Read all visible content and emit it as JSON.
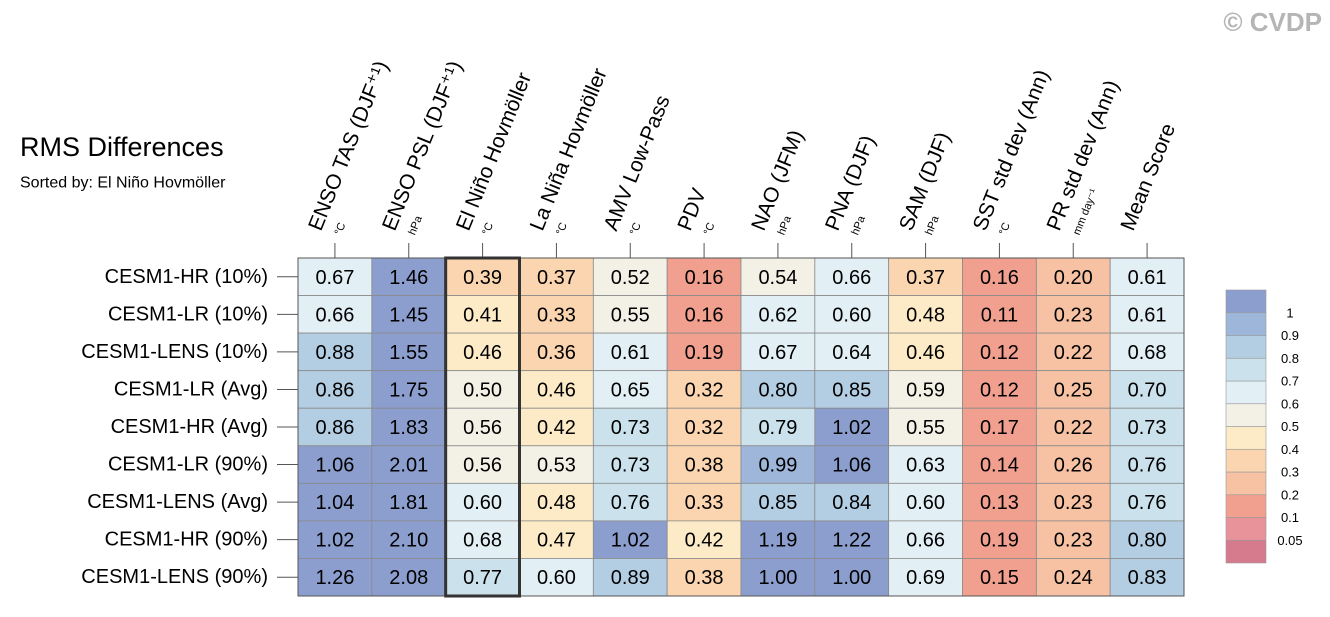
{
  "chart_data": {
    "type": "heatmap",
    "title": "RMS Differences",
    "subtitle": "Sorted by: El Niño Hovmöller",
    "watermark": "© CVDP",
    "categories": [
      "ENSO TAS (DJF⁺¹)",
      "ENSO PSL (DJF⁺¹)",
      "El Niño Hovmöller",
      "La Niña Hovmöller",
      "AMV Low-Pass",
      "PDV",
      "NAO (JFM)",
      "PNA (DJF)",
      "SAM (DJF)",
      "SST std dev (Ann)",
      "PR std dev (Ann)",
      "Mean Score"
    ],
    "units": [
      "°C",
      "hPa",
      "°C",
      "°C",
      "°C",
      "°C",
      "hPa",
      "hPa",
      "hPa",
      "°C",
      "mm day⁻¹",
      null
    ],
    "rows": [
      "CESM1-HR (10%)",
      "CESM1-LR (10%)",
      "CESM1-LENS (10%)",
      "CESM1-LR (Avg)",
      "CESM1-HR (Avg)",
      "CESM1-LR (90%)",
      "CESM1-LENS (Avg)",
      "CESM1-HR (90%)",
      "CESM1-LENS (90%)"
    ],
    "values": [
      [
        0.67,
        1.46,
        0.39,
        0.37,
        0.52,
        0.16,
        0.54,
        0.66,
        0.37,
        0.16,
        0.2,
        0.61
      ],
      [
        0.66,
        1.45,
        0.41,
        0.33,
        0.55,
        0.16,
        0.62,
        0.6,
        0.48,
        0.11,
        0.23,
        0.61
      ],
      [
        0.88,
        1.55,
        0.46,
        0.36,
        0.61,
        0.19,
        0.67,
        0.64,
        0.46,
        0.12,
        0.22,
        0.68
      ],
      [
        0.86,
        1.75,
        0.5,
        0.46,
        0.65,
        0.32,
        0.8,
        0.85,
        0.59,
        0.12,
        0.25,
        0.7
      ],
      [
        0.86,
        1.83,
        0.56,
        0.42,
        0.73,
        0.32,
        0.79,
        1.02,
        0.55,
        0.17,
        0.22,
        0.73
      ],
      [
        1.06,
        2.01,
        0.56,
        0.53,
        0.73,
        0.38,
        0.99,
        1.06,
        0.63,
        0.14,
        0.26,
        0.76
      ],
      [
        1.04,
        1.81,
        0.6,
        0.48,
        0.76,
        0.33,
        0.85,
        0.84,
        0.6,
        0.13,
        0.23,
        0.76
      ],
      [
        1.02,
        2.1,
        0.68,
        0.47,
        1.02,
        0.42,
        1.19,
        1.22,
        0.66,
        0.19,
        0.23,
        0.8
      ],
      [
        1.26,
        2.08,
        0.77,
        0.6,
        0.89,
        0.38,
        1.0,
        1.0,
        0.69,
        0.15,
        0.24,
        0.83
      ]
    ],
    "value_labels": [
      [
        "0.67",
        "1.46",
        "0.39",
        "0.37",
        "0.52",
        "0.16",
        "0.54",
        "0.66",
        "0.37",
        "0.16",
        "0.20",
        "0.61"
      ],
      [
        "0.66",
        "1.45",
        "0.41",
        "0.33",
        "0.55",
        "0.16",
        "0.62",
        "0.60",
        "0.48",
        "0.11",
        "0.23",
        "0.61"
      ],
      [
        "0.88",
        "1.55",
        "0.46",
        "0.36",
        "0.61",
        "0.19",
        "0.67",
        "0.64",
        "0.46",
        "0.12",
        "0.22",
        "0.68"
      ],
      [
        "0.86",
        "1.75",
        "0.50",
        "0.46",
        "0.65",
        "0.32",
        "0.80",
        "0.85",
        "0.59",
        "0.12",
        "0.25",
        "0.70"
      ],
      [
        "0.86",
        "1.83",
        "0.56",
        "0.42",
        "0.73",
        "0.32",
        "0.79",
        "1.02",
        "0.55",
        "0.17",
        "0.22",
        "0.73"
      ],
      [
        "1.06",
        "2.01",
        "0.56",
        "0.53",
        "0.73",
        "0.38",
        "0.99",
        "1.06",
        "0.63",
        "0.14",
        "0.26",
        "0.76"
      ],
      [
        "1.04",
        "1.81",
        "0.60",
        "0.48",
        "0.76",
        "0.33",
        "0.85",
        "0.84",
        "0.60",
        "0.13",
        "0.23",
        "0.76"
      ],
      [
        "1.02",
        "2.10",
        "0.68",
        "0.47",
        "1.02",
        "0.42",
        "1.19",
        "1.22",
        "0.66",
        "0.19",
        "0.23",
        "0.80"
      ],
      [
        "1.26",
        "2.08",
        "0.77",
        "0.60",
        "0.89",
        "0.38",
        "1.00",
        "1.00",
        "0.69",
        "0.15",
        "0.24",
        "0.83"
      ]
    ],
    "sorted_column": 2,
    "levels": [
      0.05,
      0.1,
      0.2,
      0.3,
      0.4,
      0.5,
      0.6,
      0.7,
      0.8,
      0.9,
      1
    ],
    "colors": [
      "#d57b8d",
      "#e8929a",
      "#f1a08f",
      "#f6c2a3",
      "#fad5b0",
      "#fcebc6",
      "#f3f1e5",
      "#e2eff4",
      "#cbe2ec",
      "#b3cde2",
      "#9eb6d9",
      "#8c9ece"
    ]
  }
}
